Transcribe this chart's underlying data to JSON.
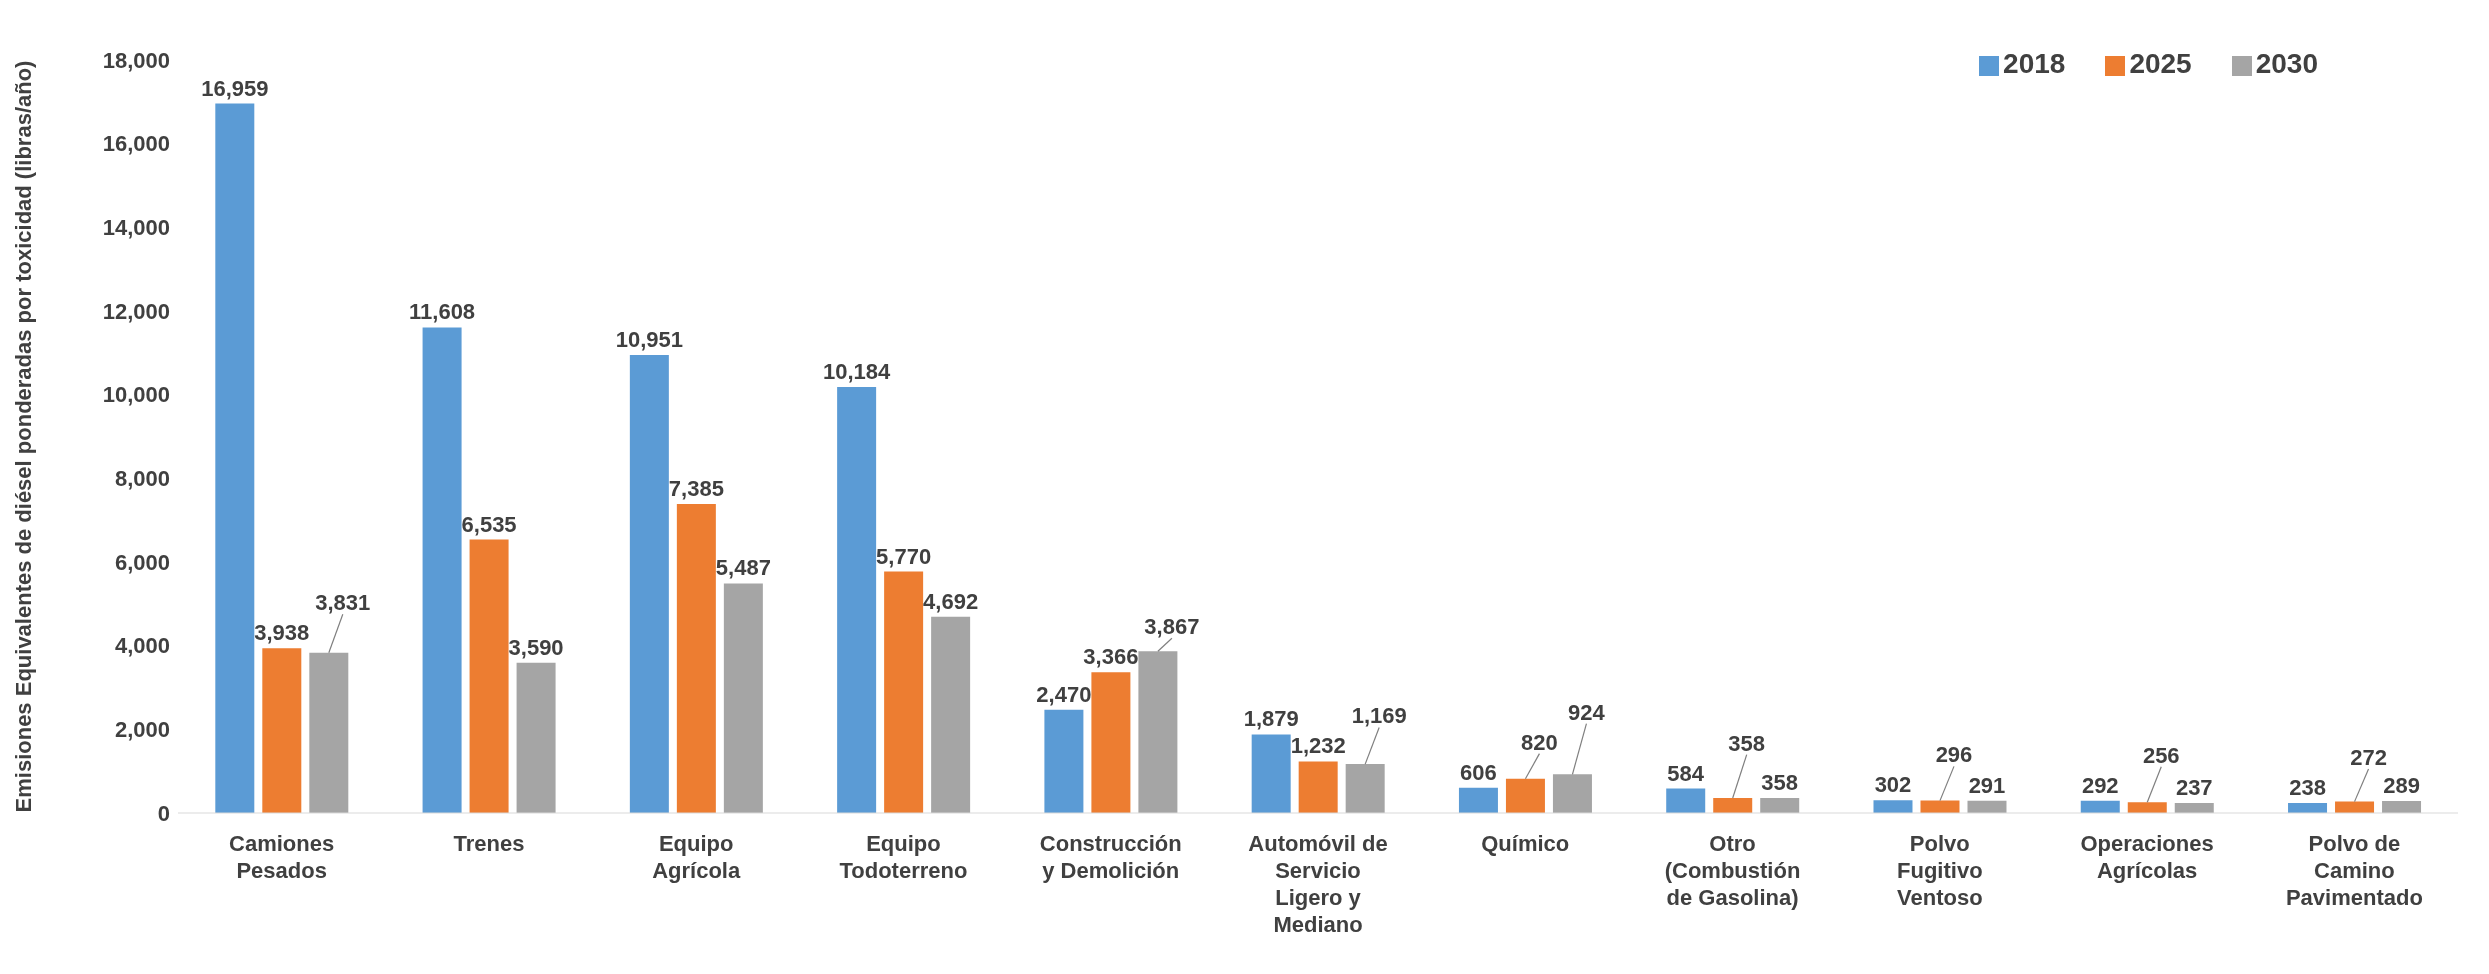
{
  "chart_data": {
    "type": "bar",
    "ylabel": "Emisiones Equivalentes de diésel ponderadas por toxicidad (libras/año)",
    "categories": [
      "Camiones Pesados",
      "Trenes",
      "Equipo Agrícola",
      "Equipo Todoterreno",
      "Construcción y Demolición",
      "Automóvil de Servicio Ligero y Mediano",
      "Químico",
      "Otro (Combustión de Gasolina)",
      "Polvo Fugitivo Ventoso",
      "Operaciones Agrícolas",
      "Polvo de Camino Pavimentado"
    ],
    "series": [
      {
        "name": "2018",
        "color": "#5b9bd5",
        "values": [
          16959,
          11608,
          10951,
          10184,
          2470,
          1879,
          606,
          584,
          302,
          292,
          238
        ],
        "value_labels": [
          "16,959",
          "11,608",
          "10,951",
          "10,184",
          "2,470",
          "1,879",
          "606",
          "584",
          "302",
          "292",
          "238"
        ]
      },
      {
        "name": "2025",
        "color": "#ed7d31",
        "values": [
          3938,
          6535,
          7385,
          5770,
          3366,
          1232,
          820,
          358,
          296,
          256,
          272
        ],
        "value_labels": [
          "3,938",
          "6,535",
          "7,385",
          "5,770",
          "3,366",
          "1,232",
          "820",
          "358",
          "296",
          "256",
          "272"
        ]
      },
      {
        "name": "2030",
        "color": "#a5a5a5",
        "values": [
          3831,
          3590,
          5487,
          4692,
          3867,
          1169,
          924,
          358,
          291,
          237,
          289
        ],
        "value_labels": [
          "3,831",
          "3,590",
          "5,487",
          "4,692",
          "3,867",
          "1,169",
          "924",
          "358",
          "291",
          "237",
          "289"
        ]
      }
    ],
    "ylim": [
      0,
      18000
    ],
    "yticks": [
      0,
      {
        "value": 2000,
        "label": "2,000"
      },
      {
        "value": 4000,
        "label": "4,000"
      },
      {
        "value": 6000,
        "label": "6,000"
      },
      {
        "value": 8000,
        "label": "8,000"
      },
      {
        "value": 10000,
        "label": "10,000"
      },
      {
        "value": 12000,
        "label": "12,000"
      },
      {
        "value": 14000,
        "label": "14,000"
      },
      {
        "value": 16000,
        "label": "16,000"
      },
      {
        "value": 18000,
        "label": "18,000"
      }
    ],
    "grid": false,
    "legend": "top right"
  }
}
